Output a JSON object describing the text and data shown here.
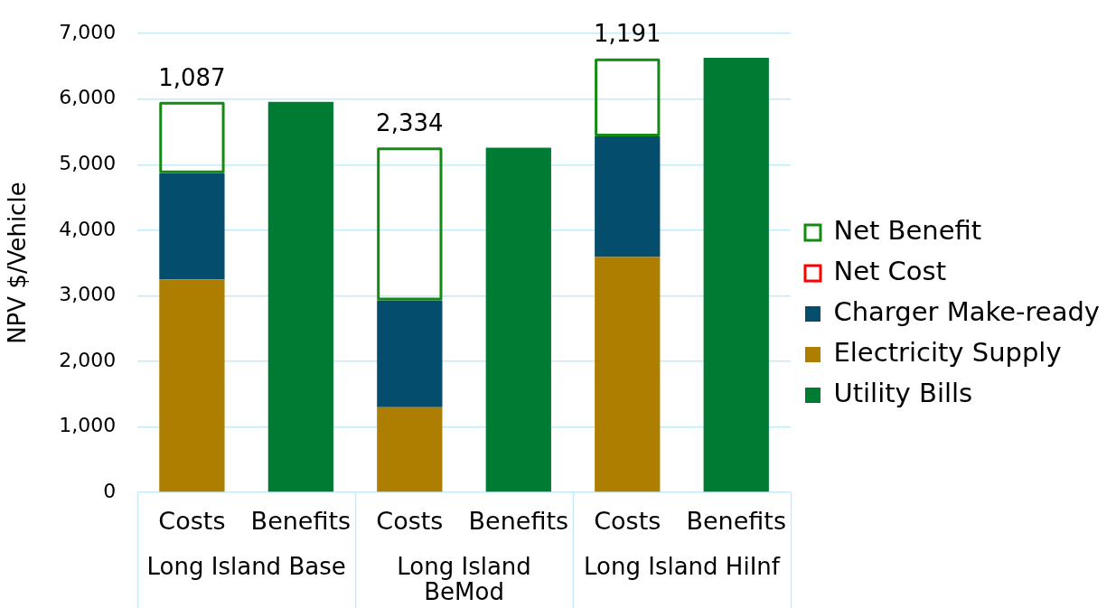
{
  "chart_data": {
    "type": "bar",
    "ylabel": "NPV $/Vehicle",
    "categories": [
      "Costs",
      "Benefits",
      "Costs",
      "Benefits",
      "Costs",
      "Benefits"
    ],
    "series": [
      {
        "name": "Utility Bills",
        "color": "#007b33",
        "values": [
          null,
          5960,
          null,
          5260,
          null,
          6630
        ]
      },
      {
        "name": "Electricity Supply",
        "color": "#ae7e00",
        "values": [
          3250,
          null,
          1300,
          null,
          3590,
          null
        ]
      },
      {
        "name": "Charger Make-ready",
        "color": "#044d6d",
        "values": [
          1620,
          null,
          1630,
          null,
          1840,
          null
        ]
      },
      {
        "name": "Net Cost",
        "color": "#ff0000",
        "line_style": "solid",
        "values": [
          null,
          null,
          null,
          null,
          null,
          null
        ]
      },
      {
        "name": "Net Benefit",
        "color": "#148a14",
        "line_style": "solid",
        "values": [
          1087,
          null,
          2334,
          null,
          1191,
          null
        ],
        "value_labels": [
          "1,087",
          null,
          "2,334",
          null,
          "1,191",
          null
        ]
      }
    ],
    "stacked": true,
    "ylim": [
      0,
      7000
    ],
    "yticks": [
      0,
      {
        "value": 1000,
        "label": "1,000"
      },
      {
        "value": 2000,
        "label": "2,000"
      },
      {
        "value": 3000,
        "label": "3,000"
      },
      {
        "value": 4000,
        "label": "4,000"
      },
      {
        "value": 5000,
        "label": "5,000"
      },
      {
        "value": 6000,
        "label": "6,000"
      },
      {
        "value": 7000,
        "label": "7,000"
      }
    ],
    "grid": "y",
    "legend": "right",
    "annotations": [
      "Long Island Base",
      "Long Island BeMod",
      "Long Island HiInf"
    ]
  }
}
